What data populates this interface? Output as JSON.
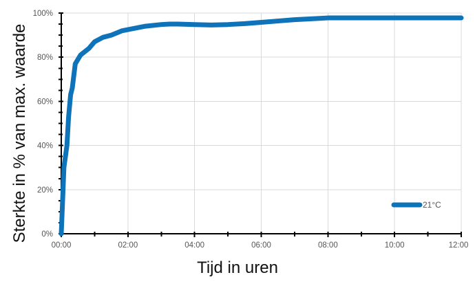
{
  "chart_data": {
    "type": "line",
    "xlabel": "Tijd in uren",
    "ylabel": "Sterkte in % van max. waarde",
    "x_tick_labels": [
      "00:00",
      "02:00",
      "04:00",
      "06:00",
      "08:00",
      "10:00",
      "12:00"
    ],
    "y_tick_labels": [
      "0%",
      "20%",
      "40%",
      "60%",
      "80%",
      "100%"
    ],
    "xlim": [
      0,
      12
    ],
    "ylim": [
      0,
      100
    ],
    "grid": true,
    "legend_position": "bottom-right",
    "series": [
      {
        "name": "21°C",
        "color": "#0f73b9",
        "x": [
          0.0,
          0.08,
          0.17,
          0.22,
          0.28,
          0.33,
          0.42,
          0.58,
          0.83,
          1.0,
          1.25,
          1.5,
          1.83,
          2.0,
          2.5,
          3.0,
          3.25,
          3.5,
          4.0,
          4.5,
          5.0,
          5.5,
          6.0,
          6.5,
          7.0,
          7.5,
          8.0,
          8.5,
          9.0,
          10.0,
          11.0,
          12.0
        ],
        "values": [
          0,
          30,
          40,
          53,
          63,
          66,
          77,
          81,
          84,
          87,
          89,
          90,
          92,
          92.5,
          94,
          94.8,
          95,
          95,
          94.8,
          94.6,
          94.8,
          95.2,
          95.8,
          96.4,
          97,
          97.4,
          97.8,
          97.8,
          97.8,
          97.8,
          97.8,
          97.8
        ]
      }
    ]
  }
}
